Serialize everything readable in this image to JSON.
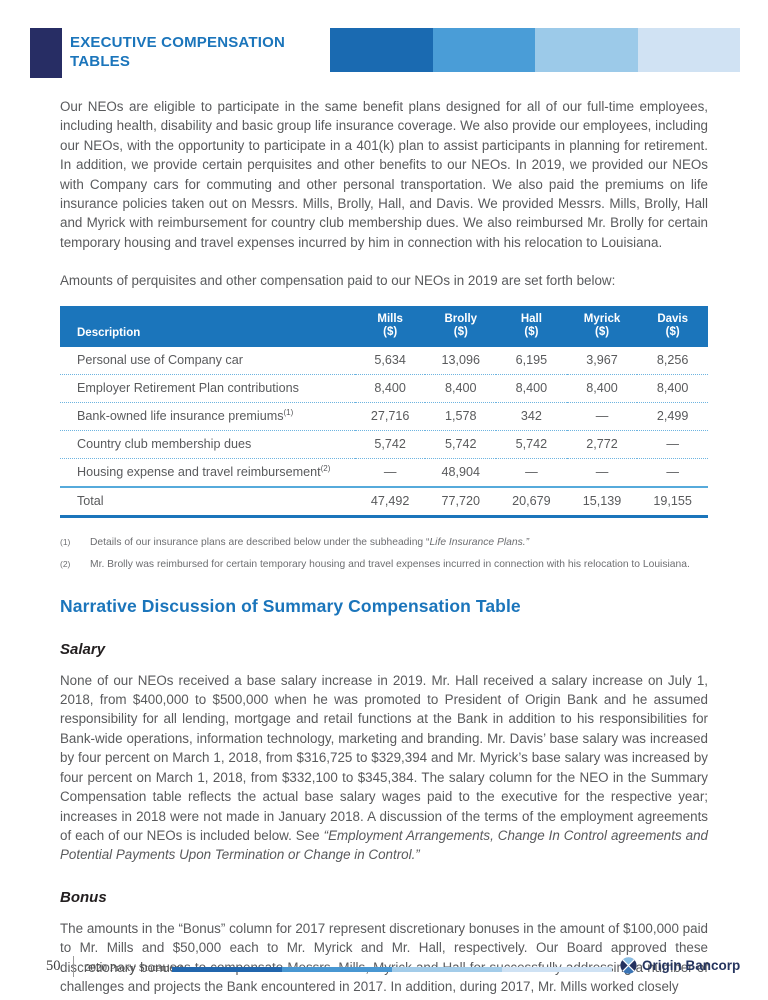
{
  "colors": {
    "accent_blue": "#1b75bb",
    "navy_square": "#272d64",
    "body_gray": "#595a5c",
    "table_dotted_rule": "#6db4e0"
  },
  "header": {
    "title_line1": "EXECUTIVE COMPENSATION",
    "title_line2": "TABLES",
    "bar_segments": [
      "#1a6ab1",
      "#4a9dd7",
      "#9ccae9",
      "#d0e2f3"
    ]
  },
  "intro_paragraph": "Our NEOs are eligible to participate in the same benefit plans designed for all of our full-time employees, including health, disability and basic group life insurance coverage. We also provide our employees, including our NEOs, with the opportunity to participate in a 401(k) plan to assist participants in planning for retirement. In addition, we provide certain perquisites and other benefits to our NEOs. In 2019, we provided our NEOs with Company cars for commuting and other personal transportation. We also paid the premiums on life insurance policies taken out on Messrs. Mills, Brolly, Hall, and Davis. We provided Messrs. Mills, Brolly, Hall and Myrick with reimbursement for country club membership dues. We also reimbursed Mr. Brolly for certain temporary housing and travel expenses incurred by him in connection with his relocation to Louisiana.",
  "lead_in": "Amounts of perquisites and other compensation paid to our NEOs in 2019 are set forth below:",
  "comp_table": {
    "description_header": "Description",
    "columns": [
      {
        "name": "Mills",
        "unit": "($)"
      },
      {
        "name": "Brolly",
        "unit": "($)"
      },
      {
        "name": "Hall",
        "unit": "($)"
      },
      {
        "name": "Myrick",
        "unit": "($)"
      },
      {
        "name": "Davis",
        "unit": "($)"
      }
    ],
    "rows": [
      {
        "description": "Personal use of Company car",
        "sup": "",
        "values": [
          "5,634",
          "13,096",
          "6,195",
          "3,967",
          "8,256"
        ]
      },
      {
        "description": "Employer Retirement Plan contributions",
        "sup": "",
        "values": [
          "8,400",
          "8,400",
          "8,400",
          "8,400",
          "8,400"
        ]
      },
      {
        "description": "Bank-owned life insurance premiums",
        "sup": "(1)",
        "values": [
          "27,716",
          "1,578",
          "342",
          "—",
          "2,499"
        ]
      },
      {
        "description": "Country club membership dues",
        "sup": "",
        "values": [
          "5,742",
          "5,742",
          "5,742",
          "2,772",
          "—"
        ]
      },
      {
        "description": "Housing expense and travel reimbursement",
        "sup": "(2)",
        "values": [
          "—",
          "48,904",
          "—",
          "—",
          "—"
        ]
      }
    ],
    "total_row": {
      "description": "Total",
      "values": [
        "47,492",
        "77,720",
        "20,679",
        "15,139",
        "19,155"
      ]
    }
  },
  "footnotes": [
    {
      "marker": "(1)",
      "text": "Details of our insurance plans are described below under the subheading “",
      "italic": "Life Insurance Plans.”",
      "suffix": ""
    },
    {
      "marker": "(2)",
      "text": "Mr. Brolly was reimbursed for certain temporary housing and travel expenses incurred in connection with his relocation to Louisiana.",
      "italic": "",
      "suffix": ""
    }
  ],
  "narrative": {
    "heading": "Narrative Discussion of Summary Compensation Table",
    "salary_heading": "Salary",
    "salary_text": "None of our NEOs received a base salary increase in 2019. Mr. Hall received a salary increase on July 1, 2018, from $400,000 to $500,000 when he was promoted to President of Origin Bank and he assumed responsibility for all lending, mortgage and retail functions at the Bank in addition to his responsibilities for Bank-wide operations, information technology, marketing and branding. Mr. Davis’ base salary was increased by four percent on March 1, 2018, from $316,725 to $329,394 and Mr. Myrick’s base salary was increased by four percent on March 1, 2018, from $332,100 to $345,384. The salary column for the NEO in the Summary Compensation table reflects the actual base salary wages paid to the executive for the respective year; increases in 2018 were not made in January 2018. A discussion of the terms of the employment agreements of each of our NEOs is included below. See ",
    "salary_italic": "“Employment Arrangements, Change In Control agreements and Potential Payments Upon Termination or Change in Control.”",
    "bonus_heading": "Bonus",
    "bonus_text": "The amounts in the “Bonus” column for 2017 represent discretionary bonuses in the amount of $100,000 paid to Mr. Mills and $50,000 each to Mr. Myrick and Mr. Hall, respectively. Our Board approved these discretionary bonuses to compensate Messrs. Mills, Myrick and Hall for successfully addressing a number of challenges and projects the Bank encountered in 2017. In addition, during 2017, Mr. Mills worked closely"
  },
  "footer": {
    "page_number": "50",
    "document_title": "2020 Proxy Statement",
    "brand": "Origin Bancorp",
    "bar_segments": [
      "#2166ad",
      "#4897d2",
      "#a3cce9",
      "#cfe2f4"
    ]
  }
}
